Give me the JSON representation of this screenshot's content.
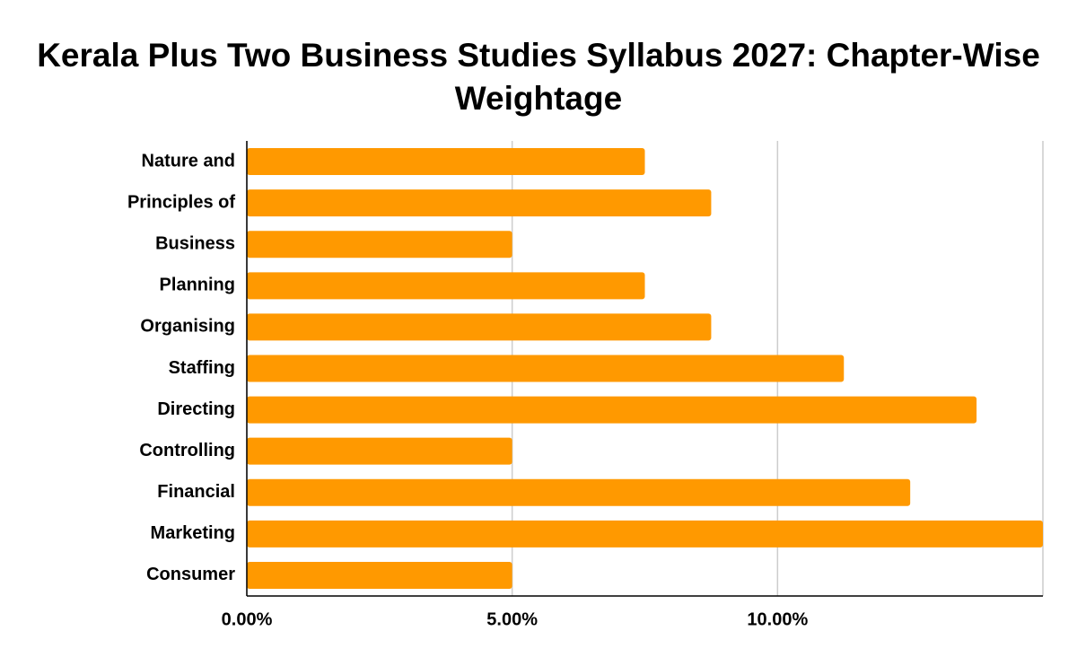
{
  "chart_data": {
    "type": "bar",
    "orientation": "horizontal",
    "title": "Kerala Plus Two Business Studies Syllabus 2027: Chapter-Wise Weightage",
    "categories": [
      "Nature and",
      "Principles of",
      "Business",
      "Planning",
      "Organising",
      "Staffing",
      "Directing",
      "Controlling",
      "Financial",
      "Marketing",
      "Consumer"
    ],
    "values": [
      7.5,
      8.75,
      5,
      7.5,
      8.75,
      11.25,
      13.75,
      5,
      12.5,
      15,
      5
    ],
    "color": "#ff9900",
    "xlim": [
      0,
      15
    ],
    "xticks": [
      {
        "value": 0,
        "label": "0.00%"
      },
      {
        "value": 5,
        "label": "5.00%"
      },
      {
        "value": 10,
        "label": "10.00%"
      }
    ],
    "grid": true
  }
}
